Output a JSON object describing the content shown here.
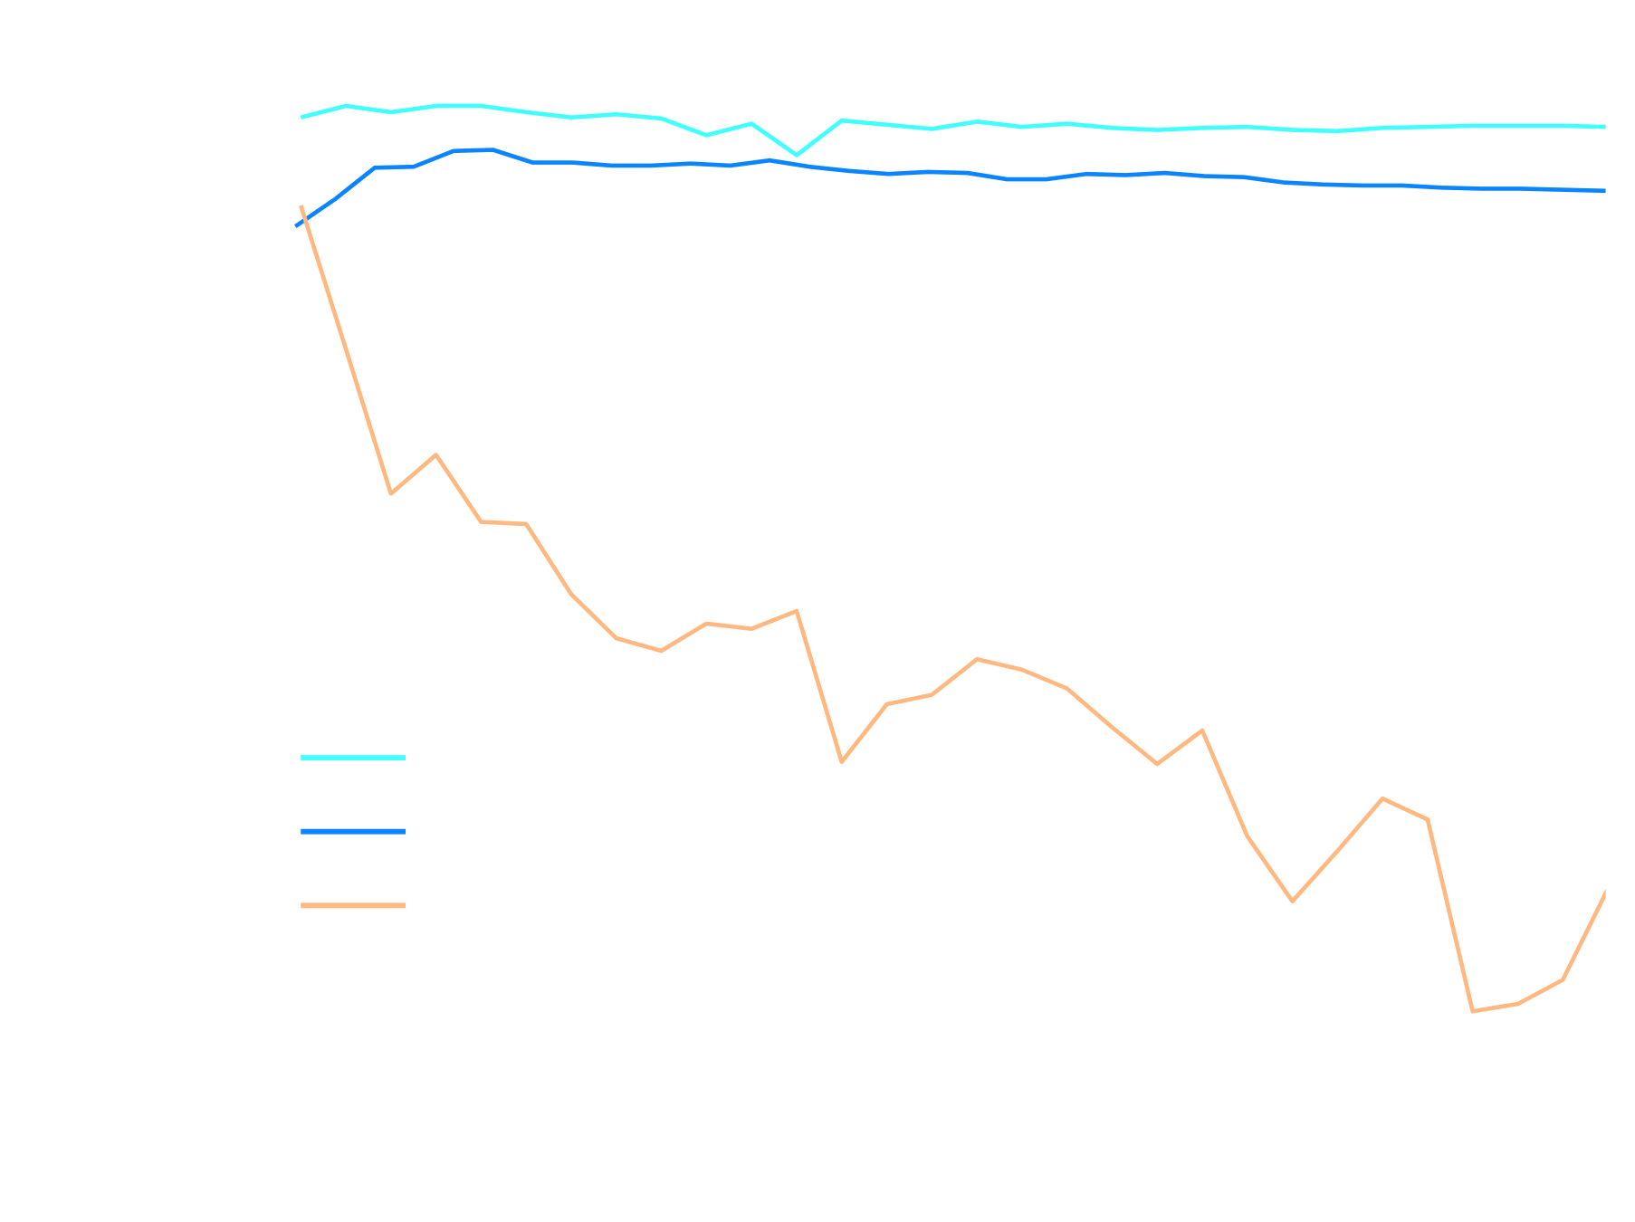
{
  "chart_data": {
    "type": "line",
    "xlim": [
      0,
      28.95
    ],
    "ylim": [
      0,
      1160
    ],
    "grid": false,
    "legend": "lower left",
    "series": [
      {
        "color": "#40ffff",
        "x": [
          0,
          1,
          2,
          3,
          4,
          5,
          6,
          7,
          8,
          9,
          10,
          11,
          12,
          13,
          14,
          15,
          16,
          17,
          18,
          19,
          20,
          21,
          22,
          23,
          24,
          25,
          26,
          27,
          28,
          28.95
        ],
        "values": [
          1048,
          1059,
          1053,
          1059,
          1059,
          1053,
          1048,
          1051,
          1047,
          1031,
          1042,
          1012,
          1045,
          1041,
          1037,
          1044,
          1039,
          1042,
          1038,
          1036,
          1038,
          1039,
          1036,
          1035,
          1038,
          1039,
          1040,
          1040,
          1040,
          1039
        ]
      },
      {
        "color": "#0a84ff",
        "x": [
          -0.12,
          0.76,
          1.64,
          2.51,
          3.39,
          4.27,
          5.14,
          6.02,
          6.9,
          7.77,
          8.65,
          9.53,
          10.4,
          11.28,
          12.16,
          13.04,
          13.91,
          14.79,
          15.67,
          16.54,
          17.42,
          18.3,
          19.17,
          20.05,
          20.93,
          21.8,
          22.68,
          23.56,
          24.43,
          25.31,
          26.19,
          27.06,
          27.94,
          28.95
        ],
        "values": [
          944,
          970,
          1000,
          1001,
          1016,
          1017,
          1005,
          1005,
          1002,
          1002,
          1004,
          1002,
          1007,
          1001,
          997,
          994,
          996,
          995,
          989,
          989,
          994,
          993,
          995,
          992,
          991,
          986,
          984,
          983,
          983,
          981,
          980,
          980,
          979,
          978
        ]
      },
      {
        "color": "#ffb880",
        "x": [
          0,
          1,
          2,
          3,
          4,
          5,
          6,
          7,
          8,
          9,
          10,
          11,
          12,
          13,
          14,
          15,
          16,
          17,
          18,
          19,
          20,
          21,
          22,
          23,
          24,
          25,
          26,
          27,
          28,
          29
        ],
        "values": [
          964,
          827,
          689,
          726,
          662,
          660,
          593,
          551,
          539,
          565,
          560,
          577,
          433,
          488,
          497,
          531,
          521,
          503,
          466,
          431,
          463,
          362,
          300,
          348,
          398,
          378,
          195,
          202,
          225,
          312
        ]
      }
    ]
  }
}
